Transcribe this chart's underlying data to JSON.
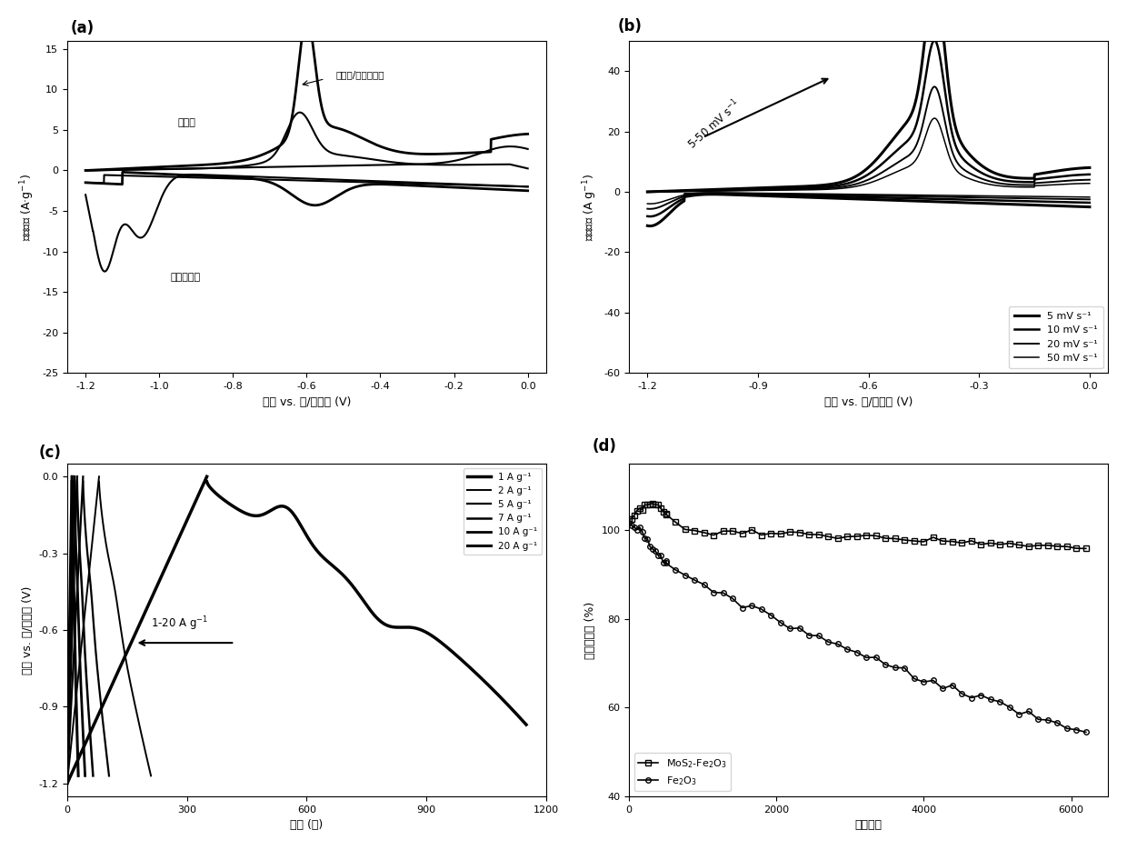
{
  "fig_bg": "#ffffff",
  "panel_a": {
    "label": "(a)",
    "xlabel": "电势 vs. 汞/氧化汞 (V)",
    "ylabel": "电流密度 (A·g⁻¹)",
    "xlim": [
      -1.25,
      0.05
    ],
    "ylim": [
      -25,
      16
    ],
    "xticks": [
      -1.2,
      -1.0,
      -0.8,
      -0.6,
      -0.4,
      -0.2,
      0.0
    ],
    "yticks": [
      -25,
      -20,
      -15,
      -10,
      -5,
      0,
      5,
      10,
      15
    ]
  },
  "panel_b": {
    "label": "(b)",
    "xlabel": "电势 vs. 汞/氧化汞 (V)",
    "ylabel": "电流密度 (A g⁻¹)",
    "xlim": [
      -1.25,
      0.05
    ],
    "ylim": [
      -60,
      50
    ],
    "xticks": [
      -1.2,
      -0.9,
      -0.6,
      -0.3,
      0.0
    ],
    "yticks": [
      -60,
      -40,
      -20,
      0,
      20,
      40
    ],
    "legend_items": [
      "5 mV s⁻¹",
      "10 mV s⁻¹",
      "20 mV s⁻¹",
      "50 mV s⁻¹"
    ]
  },
  "panel_c": {
    "label": "(c)",
    "xlabel": "时间 (秒)",
    "ylabel": "电势 vs. 汞/氧化汞 (V)",
    "xlim": [
      0,
      1200
    ],
    "ylim": [
      -1.25,
      0.05
    ],
    "xticks": [
      0,
      300,
      600,
      900,
      1200
    ],
    "yticks": [
      -1.2,
      -0.9,
      -0.6,
      -0.3,
      0.0
    ],
    "legend_items": [
      "1 A g⁻¹",
      "2 A g⁻¹",
      "5 A g⁻¹",
      "7 A g⁻¹",
      "10 A g⁻¹",
      "20 A g⁻¹"
    ]
  },
  "panel_d": {
    "label": "(d)",
    "xlabel": "循环圈数",
    "ylabel": "容量保持率 (%)",
    "xlim": [
      0,
      6500
    ],
    "ylim": [
      40,
      115
    ],
    "xticks": [
      0,
      2000,
      4000,
      6000
    ],
    "yticks": [
      40,
      60,
      80,
      100
    ],
    "legend_items": [
      "MoS₂-Fe₂O₃",
      "Fe₂O₃"
    ]
  }
}
